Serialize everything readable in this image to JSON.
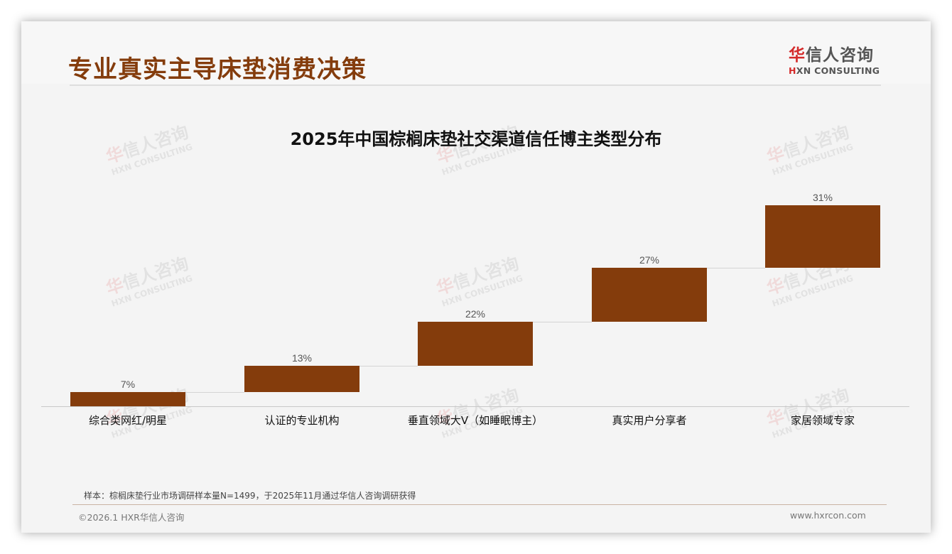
{
  "header": {
    "title": "专业真实主导床垫消费决策",
    "logo": {
      "cn_highlight": "华",
      "cn_rest": "信人咨询",
      "en_highlight": "H",
      "en_rest": "XN CONSULTING"
    }
  },
  "watermark": {
    "cn_highlight": "华",
    "cn_rest": "信人咨询",
    "en": "HXN CONSULTING"
  },
  "colors": {
    "title": "#843c0c",
    "bar": "#843c0c",
    "logo_accent": "#d42a2a"
  },
  "chart_data": {
    "type": "bar",
    "subtype": "waterfall",
    "title": "2025年中国棕榈床垫社交渠道信任博主类型分布",
    "categories": [
      "综合类网红/明星",
      "认证的专业机构",
      "垂直领域大V（如睡眠博主）",
      "真实用户分享者",
      "家居领域专家"
    ],
    "values": [
      7,
      13,
      22,
      27,
      31
    ],
    "value_labels": [
      "7%",
      "13%",
      "22%",
      "27%",
      "31%"
    ],
    "unit": "%",
    "xlabel": "",
    "ylabel": "",
    "ylim": [
      0,
      100
    ],
    "grid": false,
    "legend": "none",
    "connector_lines": true
  },
  "footer": {
    "note": "样本：棕榈床垫行业市场调研样本量N=1499，于2025年11月通过华信人咨询调研获得",
    "copyright": "©2026.1 HXR华信人咨询",
    "website": "www.hxrcon.com"
  }
}
